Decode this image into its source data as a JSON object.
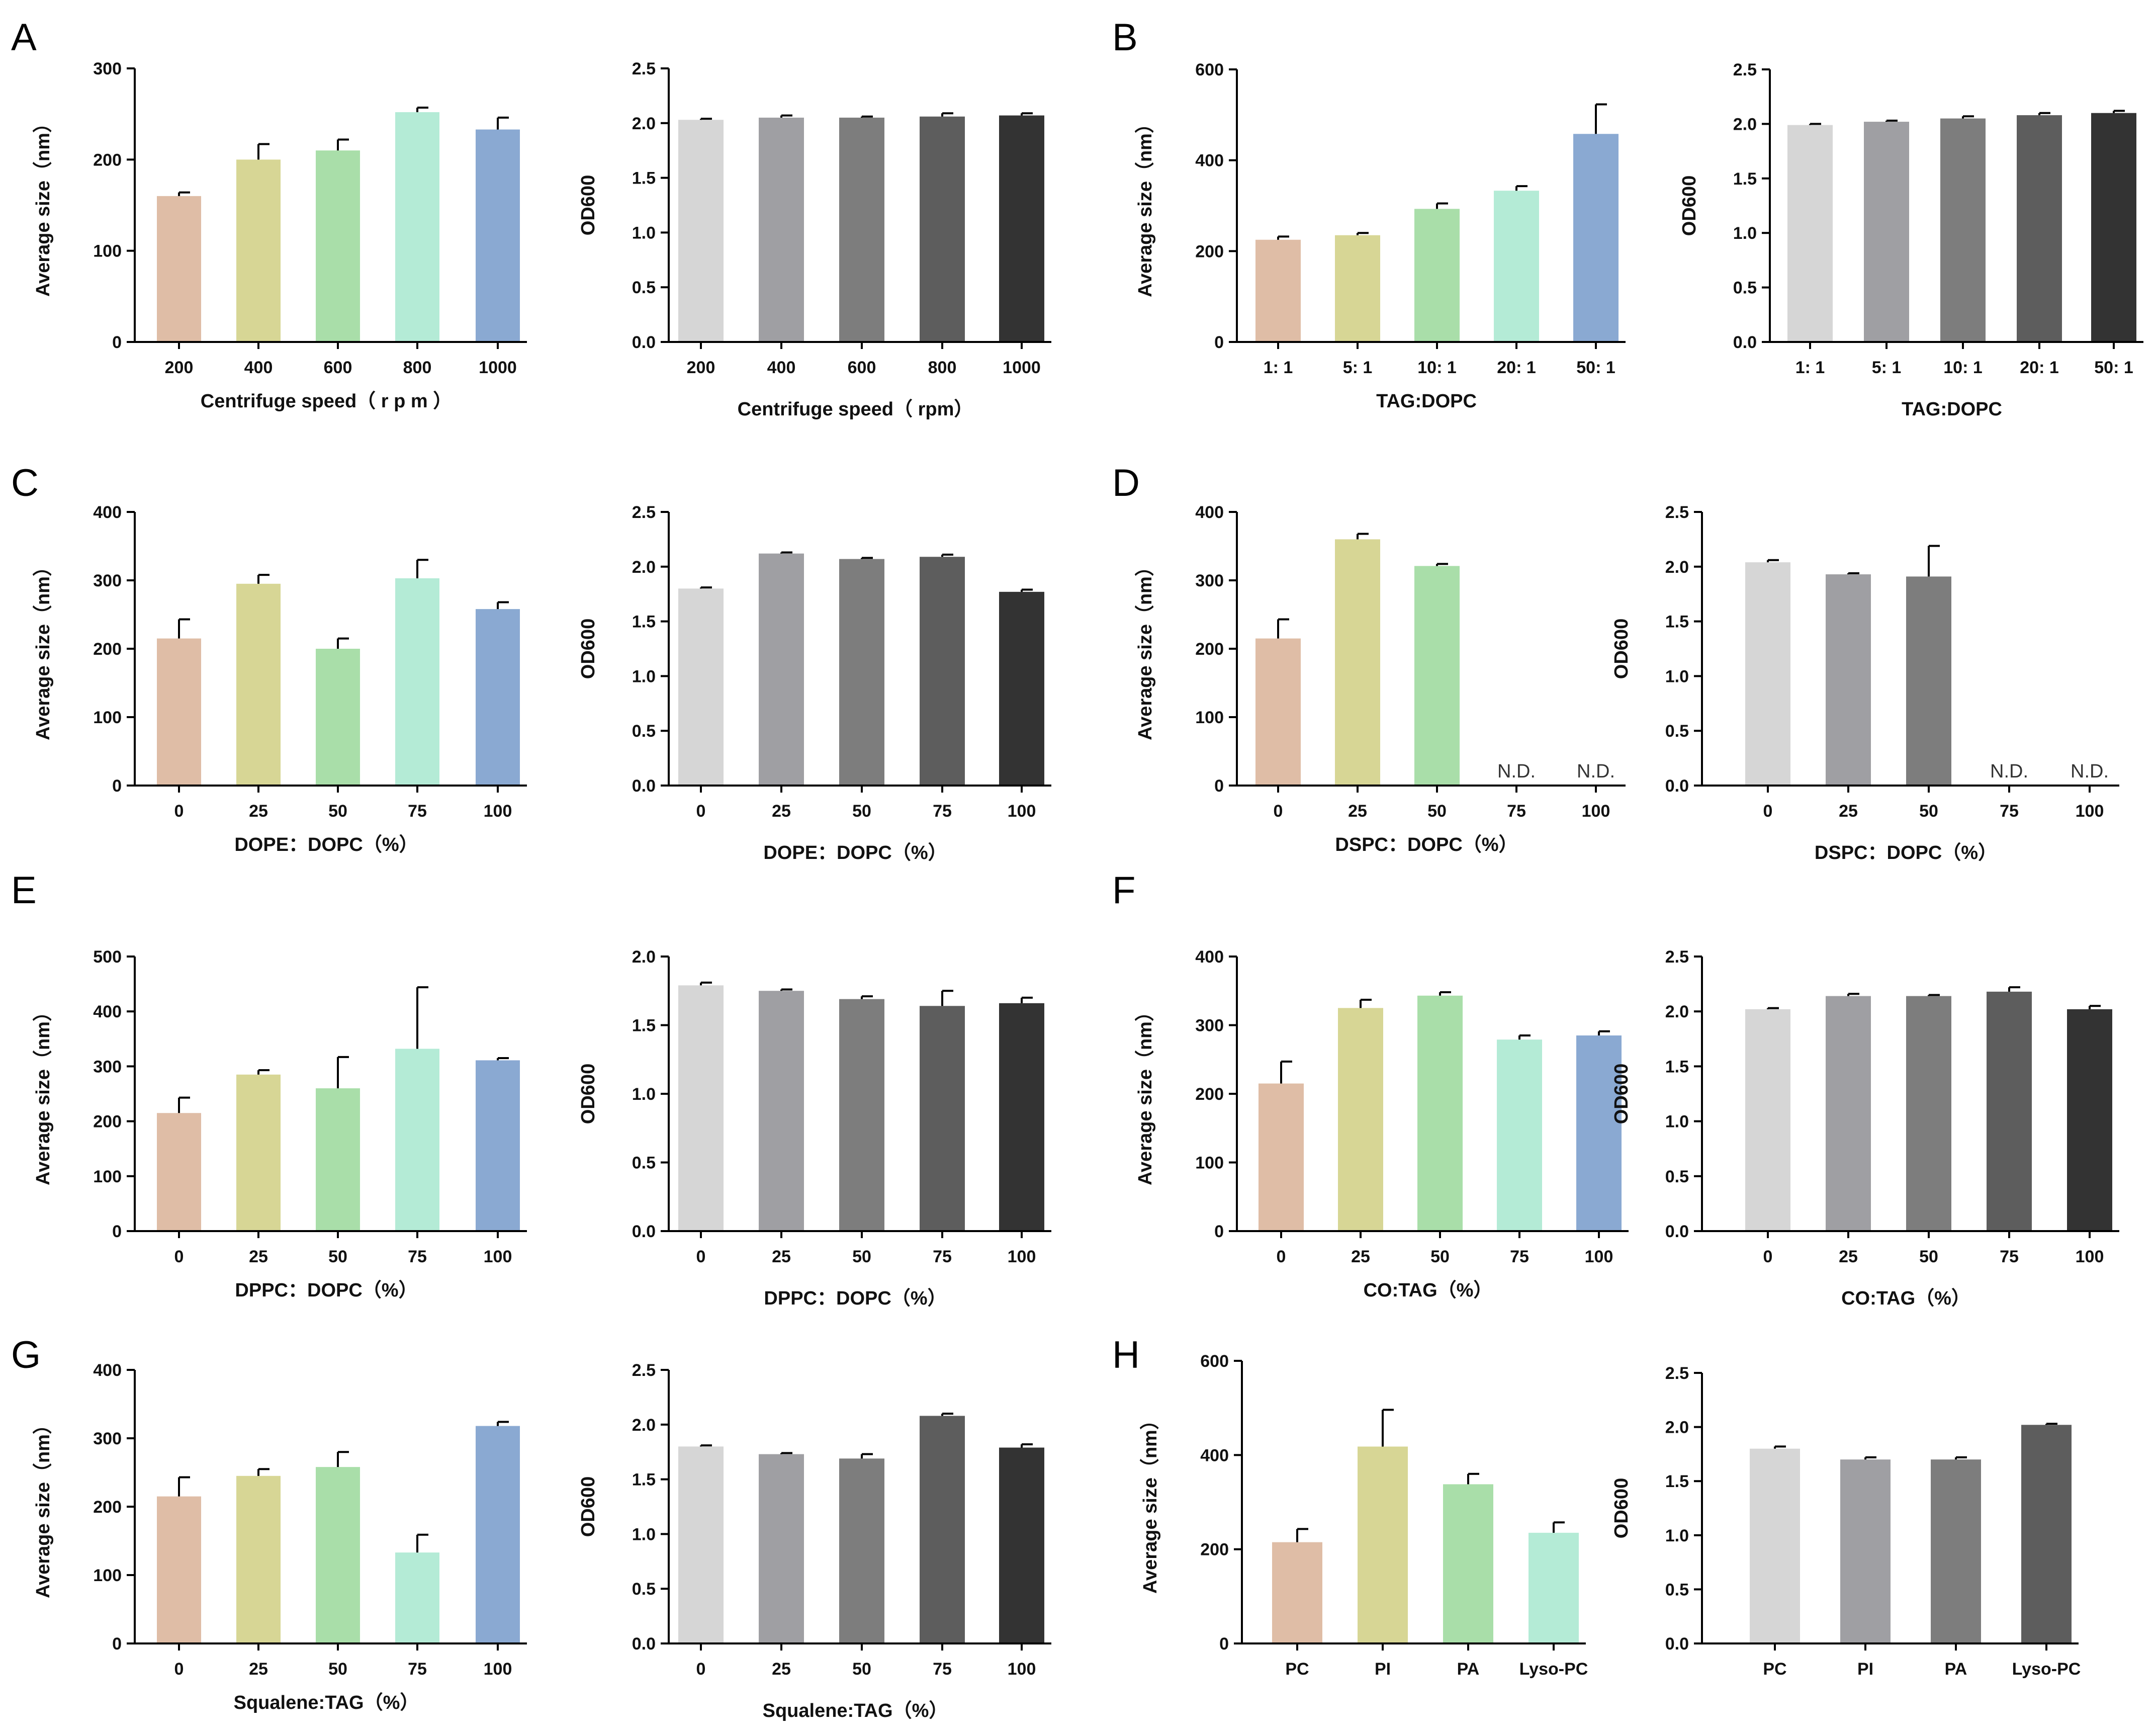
{
  "panel_letters": [
    "A",
    "B",
    "C",
    "D",
    "E",
    "F",
    "G",
    "H"
  ],
  "colors": {
    "size_palette": [
      "#dfbda6",
      "#d7d695",
      "#a9dea9",
      "#b4ebd6",
      "#8aa9d2"
    ],
    "od_palette": [
      "#d6d6d6",
      "#9f9fa3",
      "#7d7d7d",
      "#5d5d5d",
      "#333333"
    ]
  },
  "chart_data": [
    {
      "id": "A-size",
      "type": "bar",
      "panel": "A",
      "xlabel": "Centrifuge speed（ r p m ）",
      "ylabel": "Average size（nm）",
      "categories": [
        "200",
        "400",
        "600",
        "800",
        "1000"
      ],
      "values": [
        160,
        200,
        210,
        252,
        233
      ],
      "errors": [
        4,
        17,
        12,
        5,
        13
      ],
      "ylim": [
        0,
        300
      ],
      "yticks": [
        0,
        100,
        200,
        300
      ],
      "ytick_labels": [
        "0",
        "100",
        "200",
        "300"
      ],
      "nd_labels": [
        "",
        "",
        "",
        "",
        ""
      ]
    },
    {
      "id": "A-od",
      "type": "bar",
      "panel": "A",
      "xlabel": "Centrifuge speed（ rpm）",
      "ylabel": "OD600",
      "categories": [
        "200",
        "400",
        "600",
        "800",
        "1000"
      ],
      "values": [
        2.03,
        2.05,
        2.05,
        2.06,
        2.07
      ],
      "errors": [
        0.01,
        0.02,
        0.01,
        0.03,
        0.02
      ],
      "ylim": [
        0,
        2.5
      ],
      "yticks": [
        0,
        0.5,
        1.0,
        1.5,
        2.0,
        2.5
      ],
      "ytick_labels": [
        "0.0",
        "0.5",
        "1.0",
        "1.5",
        "2.0",
        "2.5"
      ],
      "nd_labels": [
        "",
        "",
        "",
        "",
        ""
      ]
    },
    {
      "id": "B-size",
      "type": "bar",
      "panel": "B",
      "xlabel": "TAG:DOPC",
      "ylabel": "Average size（nm）",
      "categories": [
        "1: 1",
        "5: 1",
        "10: 1",
        "20: 1",
        "50: 1"
      ],
      "values": [
        225,
        235,
        293,
        333,
        458
      ],
      "errors": [
        7,
        5,
        12,
        10,
        65
      ],
      "ylim": [
        0,
        600
      ],
      "yticks": [
        0,
        200,
        400,
        600
      ],
      "ytick_labels": [
        "0",
        "200",
        "400",
        "600"
      ],
      "nd_labels": [
        "",
        "",
        "",
        "",
        ""
      ]
    },
    {
      "id": "B-od",
      "type": "bar",
      "panel": "B",
      "xlabel": "TAG:DOPC",
      "ylabel": "OD600",
      "categories": [
        "1: 1",
        "5: 1",
        "10: 1",
        "20: 1",
        "50: 1"
      ],
      "values": [
        1.99,
        2.02,
        2.05,
        2.08,
        2.1
      ],
      "errors": [
        0.01,
        0.01,
        0.02,
        0.02,
        0.02
      ],
      "ylim": [
        0,
        2.5
      ],
      "yticks": [
        0,
        0.5,
        1.0,
        1.5,
        2.0,
        2.5
      ],
      "ytick_labels": [
        "0.0",
        "0.5",
        "1.0",
        "1.5",
        "2.0",
        "2.5"
      ],
      "nd_labels": [
        "",
        "",
        "",
        "",
        ""
      ]
    },
    {
      "id": "C-size",
      "type": "bar",
      "panel": "C",
      "xlabel": "DOPE：DOPC（%）",
      "ylabel": "Average size（nm）",
      "categories": [
        "0",
        "25",
        "50",
        "75",
        "100"
      ],
      "values": [
        215,
        295,
        200,
        303,
        258
      ],
      "errors": [
        28,
        13,
        15,
        27,
        10
      ],
      "ylim": [
        0,
        400
      ],
      "yticks": [
        0,
        100,
        200,
        300,
        400
      ],
      "ytick_labels": [
        "0",
        "100",
        "200",
        "300",
        "400"
      ],
      "nd_labels": [
        "",
        "",
        "",
        "",
        ""
      ]
    },
    {
      "id": "C-od",
      "type": "bar",
      "panel": "C",
      "xlabel": "DOPE：DOPC（%）",
      "ylabel": "OD600",
      "categories": [
        "0",
        "25",
        "50",
        "75",
        "100"
      ],
      "values": [
        1.8,
        2.12,
        2.07,
        2.09,
        1.77
      ],
      "errors": [
        0.01,
        0.01,
        0.01,
        0.02,
        0.02
      ],
      "ylim": [
        0,
        2.5
      ],
      "yticks": [
        0,
        0.5,
        1.0,
        1.5,
        2.0,
        2.5
      ],
      "ytick_labels": [
        "0.0",
        "0.5",
        "1.0",
        "1.5",
        "2.0",
        "2.5"
      ],
      "nd_labels": [
        "",
        "",
        "",
        "",
        ""
      ]
    },
    {
      "id": "D-size",
      "type": "bar",
      "panel": "D",
      "xlabel": "DSPC：DOPC（%）",
      "ylabel": "Average size（nm）",
      "categories": [
        "0",
        "25",
        "50",
        "75",
        "100"
      ],
      "values": [
        215,
        360,
        321,
        null,
        null
      ],
      "errors": [
        28,
        8,
        3,
        null,
        null
      ],
      "ylim": [
        0,
        400
      ],
      "yticks": [
        0,
        100,
        200,
        300,
        400
      ],
      "ytick_labels": [
        "0",
        "100",
        "200",
        "300",
        "400"
      ],
      "nd_labels": [
        "",
        "",
        "",
        "N.D.",
        "N.D."
      ]
    },
    {
      "id": "D-od",
      "type": "bar",
      "panel": "D",
      "xlabel": "DSPC：DOPC（%）",
      "ylabel": "OD600",
      "categories": [
        "0",
        "25",
        "50",
        "75",
        "100"
      ],
      "values": [
        2.04,
        1.93,
        1.91,
        null,
        null
      ],
      "errors": [
        0.02,
        0.01,
        0.28,
        null,
        null
      ],
      "ylim": [
        0,
        2.5
      ],
      "yticks": [
        0,
        0.5,
        1.0,
        1.5,
        2.0,
        2.5
      ],
      "ytick_labels": [
        "0.0",
        "0.5",
        "1.0",
        "1.5",
        "2.0",
        "2.5"
      ],
      "nd_labels": [
        "",
        "",
        "",
        "N.D.",
        "N.D."
      ]
    },
    {
      "id": "E-size",
      "type": "bar",
      "panel": "E",
      "xlabel": "DPPC：DOPC（%）",
      "ylabel": "Average size（nm）",
      "categories": [
        "0",
        "25",
        "50",
        "75",
        "100"
      ],
      "values": [
        215,
        285,
        260,
        332,
        311
      ],
      "errors": [
        28,
        8,
        57,
        112,
        4
      ],
      "ylim": [
        0,
        500
      ],
      "yticks": [
        0,
        100,
        200,
        300,
        400,
        500
      ],
      "ytick_labels": [
        "0",
        "100",
        "200",
        "300",
        "400",
        "500"
      ],
      "nd_labels": [
        "",
        "",
        "",
        "",
        ""
      ]
    },
    {
      "id": "E-od",
      "type": "bar",
      "panel": "E",
      "xlabel": "DPPC：DOPC（%）",
      "ylabel": "OD600",
      "categories": [
        "0",
        "25",
        "50",
        "75",
        "100"
      ],
      "values": [
        1.79,
        1.75,
        1.69,
        1.64,
        1.66
      ],
      "errors": [
        0.02,
        0.01,
        0.02,
        0.11,
        0.04
      ],
      "ylim": [
        0,
        2.0
      ],
      "yticks": [
        0,
        0.5,
        1.0,
        1.5,
        2.0
      ],
      "ytick_labels": [
        "0.0",
        "0.5",
        "1.0",
        "1.5",
        "2.0"
      ],
      "nd_labels": [
        "",
        "",
        "",
        "",
        ""
      ]
    },
    {
      "id": "F-size",
      "type": "bar",
      "panel": "F",
      "xlabel": "CO:TAG（%）",
      "ylabel": "Average size（nm）",
      "categories": [
        "0",
        "25",
        "50",
        "75",
        "100"
      ],
      "values": [
        215,
        325,
        343,
        279,
        285
      ],
      "errors": [
        32,
        12,
        5,
        6,
        6
      ],
      "ylim": [
        0,
        400
      ],
      "yticks": [
        0,
        100,
        200,
        300,
        400
      ],
      "ytick_labels": [
        "0",
        "100",
        "200",
        "300",
        "400"
      ],
      "nd_labels": [
        "",
        "",
        "",
        "",
        ""
      ]
    },
    {
      "id": "F-od",
      "type": "bar",
      "panel": "F",
      "xlabel": "CO:TAG（%）",
      "ylabel": "OD600",
      "categories": [
        "0",
        "25",
        "50",
        "75",
        "100"
      ],
      "values": [
        2.02,
        2.14,
        2.14,
        2.18,
        2.02
      ],
      "errors": [
        0.01,
        0.02,
        0.01,
        0.04,
        0.03
      ],
      "ylim": [
        0,
        2.5
      ],
      "yticks": [
        0,
        0.5,
        1.0,
        1.5,
        2.0,
        2.5
      ],
      "ytick_labels": [
        "0.0",
        "0.5",
        "1.0",
        "1.5",
        "2.0",
        "2.5"
      ],
      "nd_labels": [
        "",
        "",
        "",
        "",
        ""
      ]
    },
    {
      "id": "G-size",
      "type": "bar",
      "panel": "G",
      "xlabel": "Squalene:TAG（%）",
      "ylabel": "Average size（nm）",
      "categories": [
        "0",
        "25",
        "50",
        "75",
        "100"
      ],
      "values": [
        215,
        245,
        258,
        133,
        318
      ],
      "errors": [
        28,
        10,
        22,
        26,
        6
      ],
      "ylim": [
        0,
        400
      ],
      "yticks": [
        0,
        100,
        200,
        300,
        400
      ],
      "ytick_labels": [
        "0",
        "100",
        "200",
        "300",
        "400"
      ],
      "nd_labels": [
        "",
        "",
        "",
        "",
        ""
      ]
    },
    {
      "id": "G-od",
      "type": "bar",
      "panel": "G",
      "xlabel": "Squalene:TAG（%）",
      "ylabel": "OD600",
      "categories": [
        "0",
        "25",
        "50",
        "75",
        "100"
      ],
      "values": [
        1.8,
        1.73,
        1.69,
        2.08,
        1.79
      ],
      "errors": [
        0.01,
        0.01,
        0.04,
        0.02,
        0.03
      ],
      "ylim": [
        0,
        2.5
      ],
      "yticks": [
        0,
        0.5,
        1.0,
        1.5,
        2.0,
        2.5
      ],
      "ytick_labels": [
        "0.0",
        "0.5",
        "1.0",
        "1.5",
        "2.0",
        "2.5"
      ],
      "nd_labels": [
        "",
        "",
        "",
        "",
        ""
      ]
    },
    {
      "id": "H-size",
      "type": "bar",
      "panel": "H",
      "xlabel": "",
      "ylabel": "Average size（nm）",
      "categories": [
        "PC",
        "PI",
        "PA",
        "Lyso-PC"
      ],
      "values": [
        215,
        418,
        338,
        235
      ],
      "errors": [
        28,
        78,
        22,
        22
      ],
      "ylim": [
        0,
        600
      ],
      "yticks": [
        0,
        200,
        400,
        600
      ],
      "ytick_labels": [
        "0",
        "200",
        "400",
        "600"
      ],
      "nd_labels": [
        "",
        "",
        "",
        ""
      ]
    },
    {
      "id": "H-od",
      "type": "bar",
      "panel": "H",
      "xlabel": "",
      "ylabel": "OD600",
      "categories": [
        "PC",
        "PI",
        "PA",
        "Lyso-PC"
      ],
      "values": [
        1.8,
        1.7,
        1.7,
        2.02
      ],
      "errors": [
        0.02,
        0.02,
        0.02,
        0.01
      ],
      "ylim": [
        0,
        2.5
      ],
      "yticks": [
        0,
        0.5,
        1.0,
        1.5,
        2.0,
        2.5
      ],
      "ytick_labels": [
        "0.0",
        "0.5",
        "1.0",
        "1.5",
        "2.0",
        "2.5"
      ],
      "nd_labels": [
        "",
        "",
        "",
        ""
      ]
    }
  ]
}
